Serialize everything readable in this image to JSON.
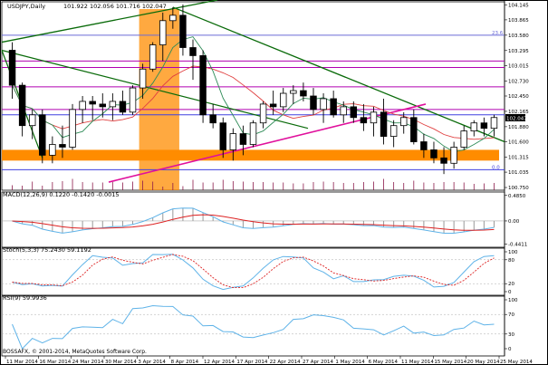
{
  "chart_data": {
    "type": "candlestick",
    "symbol_line": {
      "symbol": "USDJPY,Daily",
      "values": "101.922 102.056 101.716 102.047"
    },
    "copyright": "BOSSAFX, © 2001-2014, MetaQuotes Software Corp.",
    "price_axis": {
      "range": [
        100.7,
        104.2
      ],
      "ticks": [
        "104.145",
        "103.865",
        "103.580",
        "103.295",
        "103.015",
        "102.730",
        "102.450",
        "102.165",
        "101.880",
        "101.600",
        "101.315",
        "101.035",
        "100.750"
      ],
      "current_price": "102.047",
      "levels": [
        {
          "price": 103.58,
          "label": "23.6",
          "color": "#6b6bd6"
        },
        {
          "price": 103.1,
          "label": "",
          "color": "#b000b0"
        },
        {
          "price": 102.98,
          "label": "",
          "color": "#b000b0"
        },
        {
          "price": 102.62,
          "label": "",
          "color": "#b000b0"
        },
        {
          "price": 102.2,
          "label": "",
          "color": "#b000b0"
        },
        {
          "price": 102.1,
          "label": "",
          "color": "#4040e0"
        },
        {
          "price": 101.08,
          "label": "0.0",
          "color": "#4040e0"
        }
      ],
      "zone": {
        "from": 101.25,
        "to": 101.45,
        "color": "#ff8c00"
      }
    },
    "x_labels": [
      "11 Mar 2014",
      "16 Mar 2014",
      "24 Mar 2014",
      "30 Mar 2014",
      "3 Apr 2014",
      "8 Apr 2014",
      "12 Apr 2014",
      "17 Apr 2014",
      "22 Apr 2014",
      "27 Apr 2014",
      "1 May 2014",
      "6 May 2014",
      "11 May 2014",
      "15 May 2014",
      "20 May 2014",
      "25 May 2014"
    ],
    "candles": [
      [
        103.3,
        103.45,
        102.4,
        102.65
      ],
      [
        102.65,
        102.7,
        101.7,
        101.9
      ],
      [
        101.9,
        102.2,
        101.65,
        102.1
      ],
      [
        102.1,
        102.2,
        101.2,
        101.35
      ],
      [
        101.35,
        101.7,
        101.2,
        101.55
      ],
      [
        101.55,
        101.9,
        101.3,
        101.5
      ],
      [
        101.5,
        102.3,
        101.45,
        102.2
      ],
      [
        102.2,
        102.45,
        101.95,
        102.35
      ],
      [
        102.35,
        102.45,
        102.0,
        102.3
      ],
      [
        102.3,
        102.5,
        102.05,
        102.25
      ],
      [
        102.25,
        102.5,
        102.0,
        102.35
      ],
      [
        102.35,
        102.55,
        102.1,
        102.15
      ],
      [
        102.15,
        102.65,
        102.1,
        102.6
      ],
      [
        102.6,
        103.05,
        102.4,
        102.95
      ],
      [
        102.95,
        103.45,
        102.9,
        103.4
      ],
      [
        103.4,
        104.0,
        103.1,
        103.85
      ],
      [
        103.85,
        104.1,
        103.7,
        103.95
      ],
      [
        103.95,
        104.15,
        103.2,
        103.35
      ],
      [
        103.35,
        103.5,
        102.75,
        103.2
      ],
      [
        103.2,
        103.3,
        101.95,
        102.1
      ],
      [
        102.1,
        102.3,
        101.85,
        101.95
      ],
      [
        101.95,
        102.05,
        101.3,
        101.45
      ],
      [
        101.45,
        101.85,
        101.25,
        101.75
      ],
      [
        101.75,
        101.9,
        101.35,
        101.55
      ],
      [
        101.55,
        102.0,
        101.5,
        101.95
      ],
      [
        101.95,
        102.35,
        101.85,
        102.3
      ],
      [
        102.3,
        102.55,
        102.1,
        102.25
      ],
      [
        102.25,
        102.6,
        102.15,
        102.5
      ],
      [
        102.5,
        102.65,
        102.3,
        102.55
      ],
      [
        102.55,
        102.7,
        102.35,
        102.45
      ],
      [
        102.45,
        102.6,
        102.1,
        102.2
      ],
      [
        102.2,
        102.5,
        101.95,
        102.4
      ],
      [
        102.4,
        102.55,
        102.05,
        102.1
      ],
      [
        102.1,
        102.35,
        101.95,
        102.25
      ],
      [
        102.25,
        102.35,
        101.95,
        102.05
      ],
      [
        102.05,
        102.3,
        101.8,
        101.95
      ],
      [
        101.95,
        102.25,
        101.7,
        102.15
      ],
      [
        102.15,
        102.4,
        101.55,
        101.7
      ],
      [
        101.7,
        102.0,
        101.5,
        101.9
      ],
      [
        101.9,
        102.15,
        101.75,
        102.05
      ],
      [
        102.05,
        102.2,
        101.55,
        101.6
      ],
      [
        101.6,
        101.75,
        101.3,
        101.45
      ],
      [
        101.45,
        101.6,
        101.2,
        101.3
      ],
      [
        101.3,
        101.5,
        101.0,
        101.2
      ],
      [
        101.2,
        101.6,
        101.1,
        101.5
      ],
      [
        101.5,
        101.9,
        101.45,
        101.8
      ],
      [
        101.8,
        102.0,
        101.7,
        101.95
      ],
      [
        101.95,
        102.05,
        101.7,
        101.85
      ],
      [
        101.85,
        102.1,
        101.7,
        102.05
      ]
    ],
    "macd": {
      "label": "MACD(12,26,9) 0.1220 -0.1420 -0.0015",
      "ticks": [
        "0.4850",
        "0.00",
        "-0.4411"
      ]
    },
    "stoch": {
      "label": "Stoch(5,3,3) 75.2430 59.1192",
      "ticks": [
        "100",
        "80",
        "20",
        "0"
      ]
    },
    "rsi": {
      "label": "RSI(9) 59.9936",
      "ticks": [
        "100",
        "70",
        "30",
        "0"
      ]
    },
    "colors": {
      "bull": "#ffffff",
      "bear": "#000000",
      "ma_red": "#e04040",
      "ma_green": "#2e8b57",
      "trend_green": "#0a6b0a",
      "trend_pink": "#e0109c",
      "highlight": "#ff8c00",
      "macd_signal": "#dd2222",
      "macd_main": "#5fb3e8",
      "stoch_main": "#5fb3e8",
      "stoch_signal": "#dd2222",
      "rsi": "#5fb3e8"
    }
  }
}
